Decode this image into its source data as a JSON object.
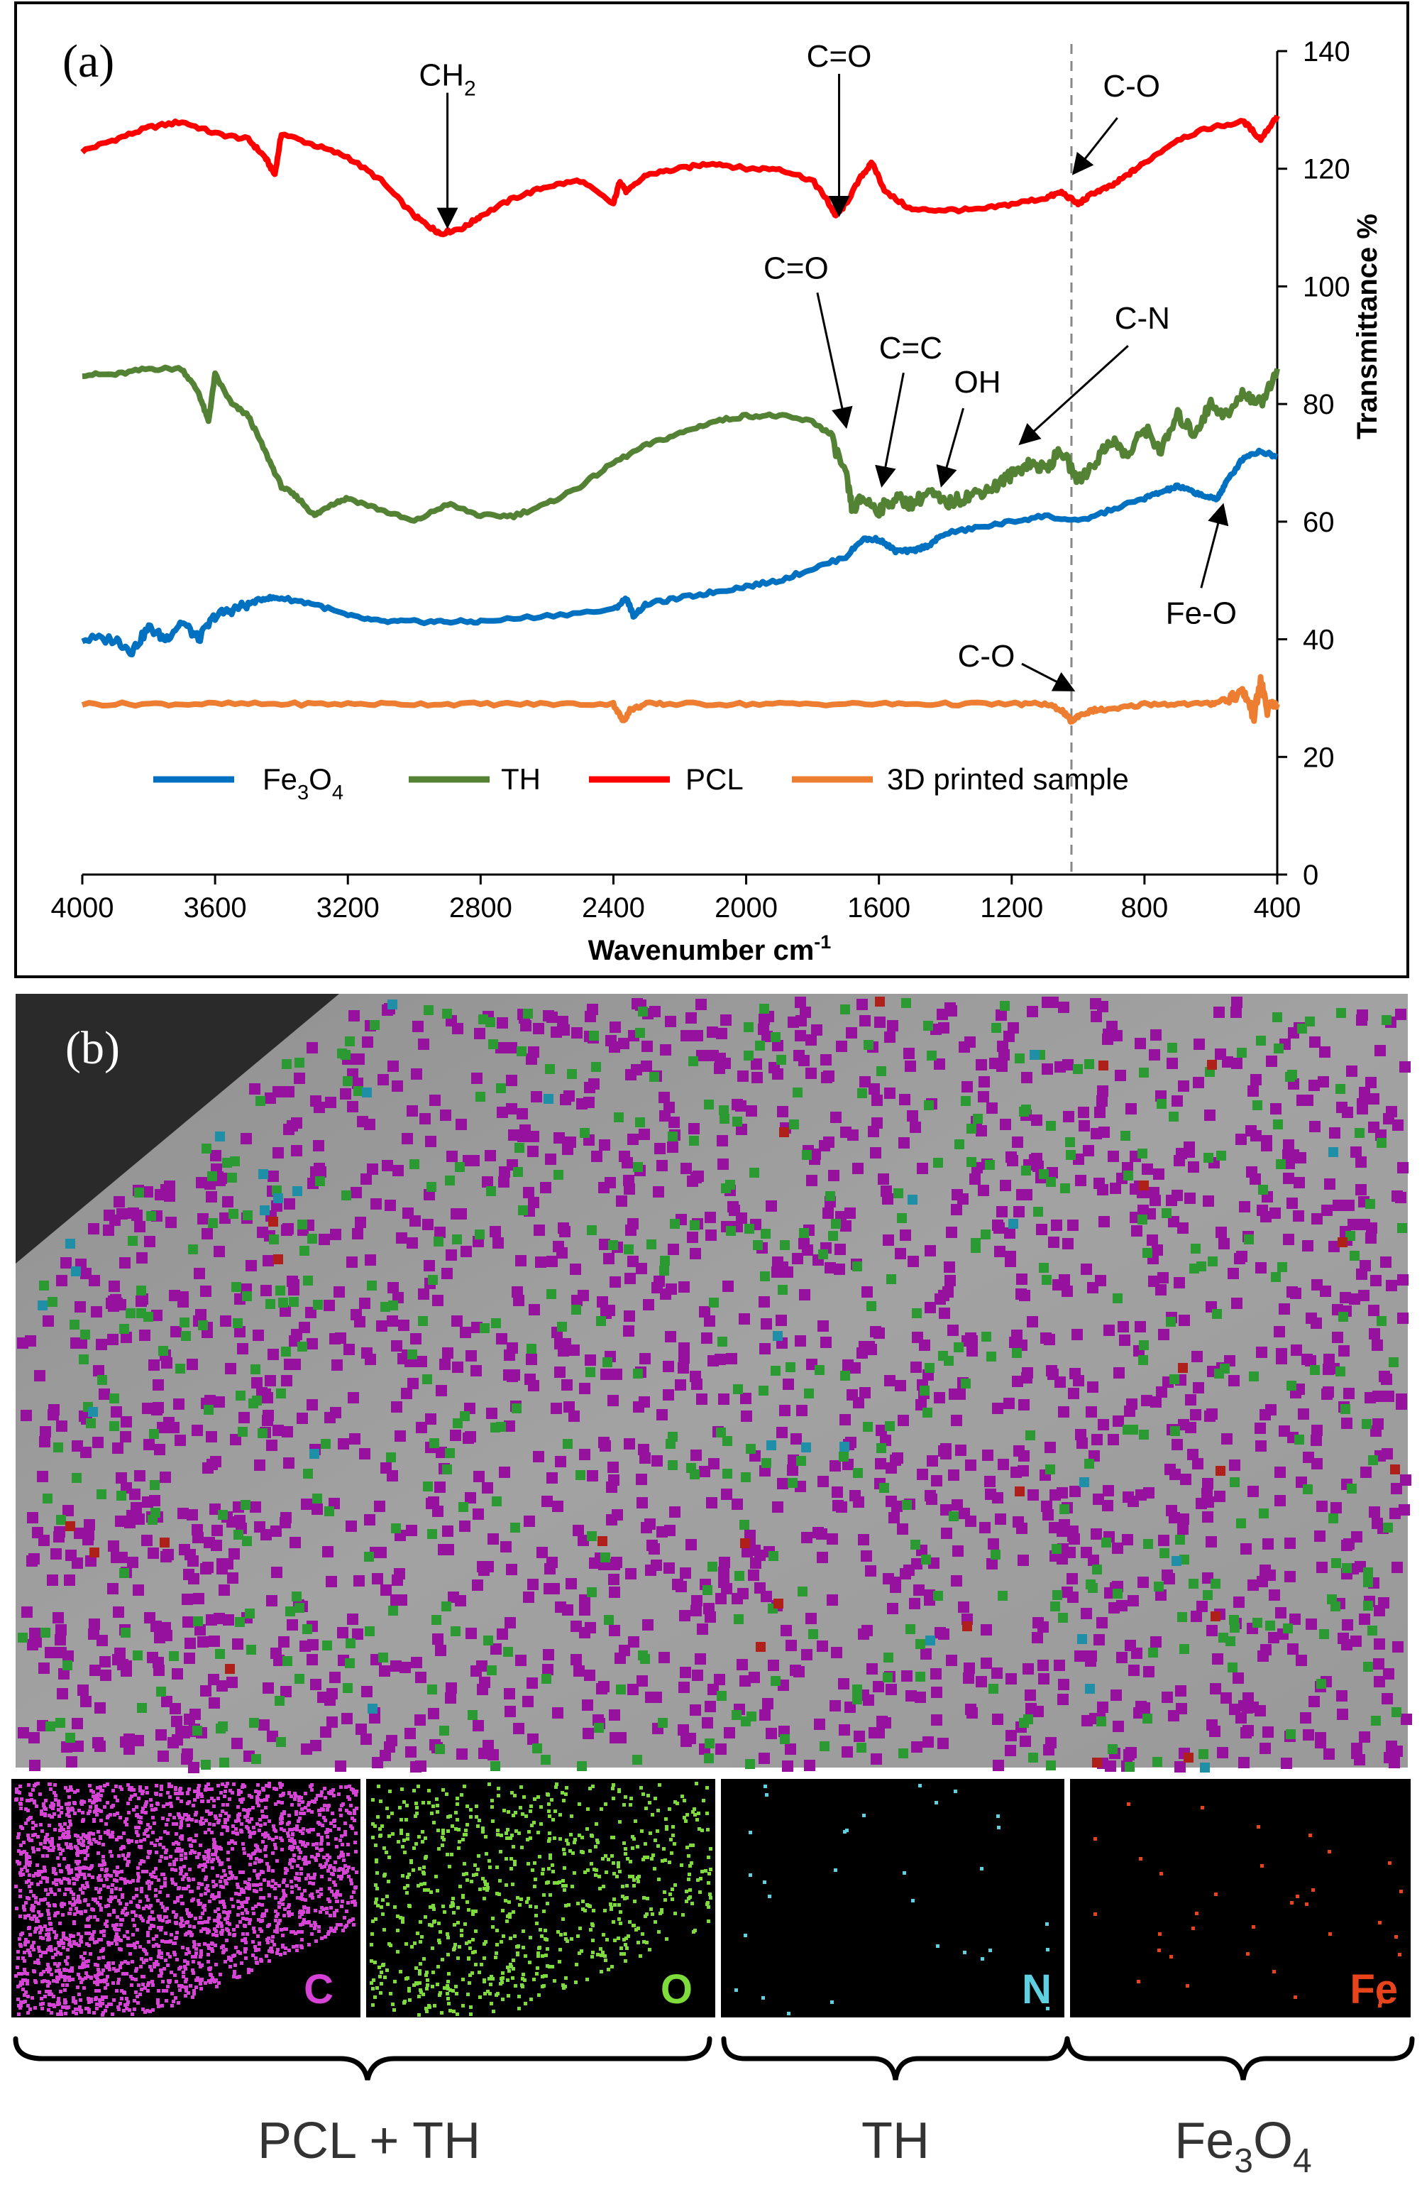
{
  "chart_data": {
    "type": "line",
    "panel_label": "(a)",
    "xlabel": "Wavenumber cm",
    "xlabel_sup": "-1",
    "ylabel": "Transmittance %",
    "xlim": [
      4000,
      400
    ],
    "ylim": [
      0,
      140
    ],
    "x_ticks": [
      4000,
      3600,
      3200,
      2800,
      2400,
      2000,
      1600,
      1200,
      800,
      400
    ],
    "y_ticks": [
      0,
      20,
      40,
      60,
      80,
      100,
      120,
      140
    ],
    "y_axis_side": "right",
    "reference_line_x": 1020,
    "legend": {
      "position": "bottom-center",
      "entries": [
        {
          "label": "Fe",
          "sub": "3",
          "label2": "O",
          "sub2": "4"
        },
        {
          "label": "TH"
        },
        {
          "label": "PCL"
        },
        {
          "label": "3D printed sample"
        }
      ]
    },
    "series": [
      {
        "name": "PCL",
        "color": "#ff0000",
        "x": [
          4000,
          3900,
          3800,
          3700,
          3600,
          3500,
          3450,
          3420,
          3400,
          3300,
          3200,
          3100,
          3000,
          2950,
          2920,
          2850,
          2800,
          2700,
          2600,
          2500,
          2400,
          2380,
          2360,
          2300,
          2200,
          2100,
          2000,
          1900,
          1800,
          1760,
          1730,
          1700,
          1650,
          1620,
          1580,
          1500,
          1400,
          1300,
          1200,
          1100,
          1050,
          1000,
          950,
          900,
          850,
          800,
          700,
          600,
          500,
          450,
          400
        ],
        "values": [
          123,
          125,
          127,
          128,
          126,
          125,
          122,
          119,
          126,
          124,
          122,
          118,
          112,
          110,
          109,
          110,
          112,
          115,
          117,
          118,
          114,
          118,
          116,
          119,
          120,
          121,
          120,
          120,
          118,
          115,
          112,
          114,
          119,
          121,
          116,
          113,
          113,
          113,
          114,
          115,
          116,
          114,
          116,
          117,
          119,
          121,
          125,
          127,
          128,
          125,
          129
        ]
      },
      {
        "name": "TH",
        "color": "#548235",
        "x": [
          4000,
          3900,
          3800,
          3700,
          3650,
          3620,
          3600,
          3550,
          3500,
          3450,
          3400,
          3350,
          3300,
          3250,
          3200,
          3100,
          3000,
          2900,
          2800,
          2700,
          2600,
          2500,
          2400,
          2300,
          2200,
          2100,
          2000,
          1900,
          1800,
          1750,
          1700,
          1680,
          1650,
          1600,
          1550,
          1500,
          1450,
          1400,
          1350,
          1300,
          1250,
          1200,
          1150,
          1100,
          1050,
          1000,
          950,
          900,
          850,
          800,
          750,
          700,
          650,
          600,
          550,
          500,
          450,
          400
        ],
        "values": [
          85,
          85,
          86,
          86,
          82,
          77,
          85,
          80,
          78,
          72,
          66,
          64,
          61,
          63,
          64,
          62,
          60,
          63,
          61,
          61,
          63,
          66,
          70,
          73,
          75,
          77,
          78,
          78,
          77,
          75,
          68,
          62,
          64,
          62,
          64,
          63,
          65,
          63,
          64,
          65,
          66,
          68,
          70,
          69,
          72,
          67,
          70,
          74,
          71,
          76,
          72,
          78,
          75,
          80,
          78,
          82,
          80,
          86
        ]
      },
      {
        "name": "Fe3O4",
        "color": "#0070c0",
        "x": [
          4000,
          3900,
          3850,
          3800,
          3750,
          3700,
          3650,
          3600,
          3550,
          3500,
          3450,
          3400,
          3300,
          3200,
          3100,
          3000,
          2900,
          2800,
          2600,
          2400,
          2360,
          2340,
          2300,
          2200,
          2100,
          2000,
          1900,
          1800,
          1700,
          1650,
          1600,
          1550,
          1500,
          1450,
          1400,
          1300,
          1200,
          1100,
          1000,
          900,
          800,
          750,
          700,
          650,
          600,
          580,
          550,
          500,
          450,
          400
        ],
        "values": [
          40,
          40,
          38,
          42,
          40,
          43,
          40,
          44,
          45,
          46,
          47,
          47,
          46,
          44,
          43,
          43,
          43,
          43,
          44,
          45,
          47,
          44,
          46,
          47,
          48,
          49,
          50,
          52,
          54,
          57,
          57,
          55,
          55,
          56,
          58,
          59,
          60,
          61,
          60,
          62,
          64,
          65,
          66,
          65,
          64,
          64,
          67,
          71,
          72,
          71
        ]
      },
      {
        "name": "3D printed sample",
        "color": "#ed7d31",
        "x": [
          4000,
          3800,
          3600,
          3400,
          3200,
          3000,
          2800,
          2600,
          2400,
          2370,
          2350,
          2300,
          2200,
          2000,
          1800,
          1600,
          1400,
          1200,
          1100,
          1050,
          1020,
          1000,
          950,
          900,
          800,
          700,
          600,
          550,
          500,
          470,
          450,
          430,
          400
        ],
        "values": [
          29,
          29,
          29,
          29,
          29,
          29,
          29,
          29,
          29,
          26,
          28,
          29,
          29,
          29,
          29,
          29,
          29,
          29,
          29,
          28,
          26,
          27,
          28,
          28,
          29,
          29,
          29,
          30,
          31,
          27,
          33,
          28,
          29
        ]
      }
    ],
    "annotations": [
      {
        "text": "CH",
        "sub": "2",
        "x": 2900,
        "y": 110,
        "color": "#000000"
      },
      {
        "text": "C=O",
        "x": 1720,
        "y": 112,
        "color": "#000000"
      },
      {
        "text": "C-O",
        "x": 1010,
        "y": 119,
        "color": "#000000"
      },
      {
        "text": "C=O",
        "x": 1700,
        "y": 76,
        "color": "#000000"
      },
      {
        "text": "C=C",
        "x": 1590,
        "y": 66,
        "color": "#000000"
      },
      {
        "text": "OH",
        "x": 1410,
        "y": 66,
        "color": "#000000"
      },
      {
        "text": "C-N",
        "x": 1170,
        "y": 73,
        "color": "#000000"
      },
      {
        "text": "Fe-O",
        "x": 565,
        "y": 62,
        "color": "#000000"
      },
      {
        "text": "C-O",
        "x": 1020,
        "y": 31,
        "color": "#000000"
      }
    ]
  },
  "panel_b": {
    "label": "(b)",
    "element_maps": [
      {
        "symbol": "C",
        "color": "#d643d6"
      },
      {
        "symbol": "O",
        "color": "#7ddc3c"
      },
      {
        "symbol": "N",
        "color": "#5fd0e0"
      },
      {
        "symbol": "Fe",
        "color": "#e8441c"
      }
    ],
    "overlay_colors": {
      "C": "#96119e",
      "O": "#2b9a33",
      "N": "#1e8fa6",
      "Fe": "#b0201a"
    },
    "groups": [
      {
        "label": "PCL + TH"
      },
      {
        "label": "TH"
      },
      {
        "label": "Fe",
        "sub": "3",
        "label2": "O",
        "sub2": "4"
      }
    ]
  }
}
